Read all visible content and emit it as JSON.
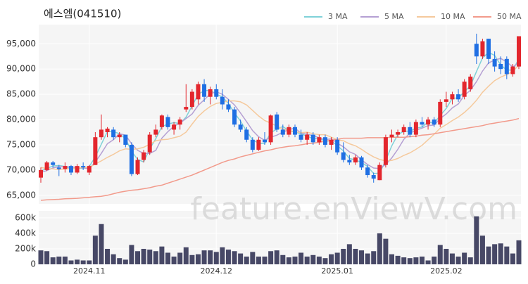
{
  "watermark": "feature.enViewV.com",
  "chart_data": [
    {
      "type": "candlestick",
      "title": "에스엠(041510)",
      "categories": [
        null,
        null,
        null,
        null,
        null,
        null,
        null,
        null,
        "2024.11",
        null,
        null,
        null,
        null,
        null,
        null,
        null,
        null,
        null,
        null,
        null,
        null,
        null,
        null,
        null,
        null,
        null,
        null,
        null,
        null,
        "2024.12",
        null,
        null,
        null,
        null,
        null,
        null,
        null,
        null,
        null,
        null,
        null,
        null,
        null,
        null,
        null,
        null,
        null,
        null,
        null,
        "2025.01",
        null,
        null,
        null,
        null,
        null,
        null,
        null,
        null,
        null,
        null,
        null,
        null,
        null,
        null,
        null,
        null,
        null,
        "2025.02",
        null,
        null,
        null,
        null,
        null,
        null,
        null,
        null,
        null,
        null,
        null,
        null
      ],
      "open": [
        68500,
        70000,
        71500,
        70500,
        70200,
        70800,
        69500,
        70800,
        69500,
        71000,
        76500,
        77500,
        78000,
        76500,
        77000,
        75000,
        69200,
        72000,
        73500,
        77000,
        78500,
        80500,
        78000,
        79000,
        82000,
        82500,
        84000,
        87000,
        84500,
        86000,
        84500,
        83000,
        82000,
        79000,
        78000,
        76000,
        74000,
        76000,
        75500,
        81000,
        78000,
        77000,
        78500,
        77000,
        76000,
        77000,
        75500,
        76500,
        75000,
        76000,
        73500,
        72000,
        71500,
        72500,
        70500,
        69000,
        68000,
        71000,
        76500,
        77000,
        77500,
        78500,
        77000,
        79500,
        79000,
        80000,
        79000,
        83500,
        84000,
        85000,
        84500,
        86000,
        95000,
        92500,
        96000,
        92000,
        91000,
        92000,
        89000,
        90500
      ],
      "high": [
        70500,
        71800,
        71800,
        71000,
        71500,
        71000,
        71200,
        71500,
        71000,
        77500,
        81000,
        78500,
        78500,
        77500,
        77000,
        75500,
        72500,
        74000,
        77500,
        79000,
        81000,
        81000,
        79500,
        80500,
        87000,
        86000,
        87500,
        88000,
        86500,
        87000,
        86000,
        84000,
        82500,
        80000,
        78500,
        76500,
        76500,
        77500,
        81000,
        81500,
        79000,
        79000,
        79000,
        78000,
        77500,
        77500,
        77000,
        77000,
        76500,
        76500,
        75500,
        73000,
        73000,
        72800,
        71000,
        69500,
        71500,
        77000,
        78000,
        78000,
        79000,
        79500,
        80000,
        80500,
        80500,
        80500,
        84000,
        85500,
        85500,
        86000,
        88000,
        89000,
        97000,
        96000,
        96000,
        93500,
        92500,
        92500,
        91000,
        96500
      ],
      "low": [
        67500,
        69800,
        70500,
        68800,
        69500,
        69000,
        69200,
        70000,
        69000,
        71000,
        76000,
        76500,
        76000,
        75500,
        74500,
        68800,
        69000,
        71500,
        73000,
        76500,
        78000,
        78000,
        77000,
        78000,
        81500,
        82000,
        83000,
        83500,
        83000,
        84000,
        82000,
        81500,
        78500,
        77500,
        75500,
        73500,
        73800,
        75000,
        75000,
        77500,
        76500,
        76500,
        76500,
        75500,
        75000,
        75000,
        75000,
        74500,
        74000,
        73000,
        71500,
        71000,
        71000,
        70000,
        68500,
        67500,
        68000,
        70500,
        75500,
        76500,
        77000,
        76500,
        76500,
        78500,
        78000,
        78500,
        78500,
        82500,
        83000,
        83500,
        84000,
        85500,
        91000,
        92000,
        91000,
        89500,
        89000,
        88000,
        88500,
        90000
      ],
      "close": [
        70000,
        71500,
        71000,
        70200,
        70800,
        69500,
        70800,
        70500,
        70800,
        76500,
        78000,
        78200,
        76500,
        77000,
        75000,
        69200,
        72000,
        73500,
        77000,
        78000,
        80800,
        78500,
        79000,
        80000,
        82500,
        85500,
        87000,
        84500,
        86000,
        84500,
        83000,
        82000,
        79000,
        78000,
        76000,
        74000,
        76000,
        75500,
        80800,
        78000,
        77000,
        78500,
        77000,
        76000,
        77000,
        75500,
        76500,
        75000,
        76000,
        73500,
        72000,
        71500,
        72500,
        70500,
        69000,
        68300,
        71000,
        76500,
        77000,
        77500,
        78500,
        77000,
        79500,
        79000,
        80000,
        79000,
        83500,
        84000,
        85000,
        84000,
        87500,
        88500,
        92500,
        95500,
        92000,
        90500,
        90000,
        89000,
        90500,
        96500
      ],
      "up_color": "#e3262d",
      "down_color": "#1f6fe3",
      "series": [
        {
          "name": "3 MA",
          "color": "#7fd1d8",
          "values": [
            69800,
            70300,
            70800,
            70900,
            70700,
            70200,
            70400,
            70300,
            70700,
            72600,
            75100,
            77600,
            77600,
            77200,
            76200,
            73700,
            72100,
            71600,
            74200,
            76200,
            78600,
            79100,
            79400,
            79200,
            80500,
            82700,
            85000,
            85700,
            85800,
            85000,
            84500,
            83200,
            81300,
            79700,
            77700,
            76000,
            75300,
            75200,
            77400,
            78100,
            78600,
            77800,
            77500,
            77200,
            76700,
            76200,
            76300,
            75700,
            75800,
            74800,
            73800,
            72300,
            72000,
            71500,
            70700,
            69300,
            69400,
            71900,
            74800,
            77000,
            77700,
            77700,
            78300,
            78500,
            79500,
            79300,
            80800,
            82200,
            84200,
            84300,
            85500,
            86700,
            89500,
            92200,
            93300,
            92700,
            90800,
            89800,
            89800,
            92000
          ]
        },
        {
          "name": "5 MA",
          "color": "#b5a0d3",
          "values": [
            69500,
            69900,
            70400,
            70700,
            70700,
            70600,
            70500,
            70400,
            70300,
            71600,
            73300,
            75200,
            76000,
            77200,
            76900,
            75200,
            73900,
            73300,
            73300,
            73900,
            76300,
            77600,
            78700,
            79300,
            80200,
            81100,
            82800,
            83900,
            85100,
            85500,
            85000,
            84000,
            82900,
            81300,
            79600,
            77800,
            76600,
            75900,
            76500,
            76900,
            77500,
            78000,
            78300,
            77300,
            77100,
            76800,
            76400,
            76000,
            76200,
            75300,
            74600,
            73600,
            73100,
            72000,
            71100,
            70400,
            70300,
            71100,
            72400,
            74100,
            76100,
            77300,
            77900,
            78300,
            78800,
            78900,
            80200,
            81100,
            82300,
            83100,
            84800,
            85800,
            87500,
            89600,
            91200,
            91800,
            92100,
            91400,
            90400,
            91300
          ]
        },
        {
          "name": "10 MA",
          "color": "#f5c99c",
          "values": [
            70500,
            70300,
            70200,
            70100,
            70200,
            70300,
            70400,
            70500,
            70500,
            71200,
            71800,
            72500,
            73100,
            73800,
            74200,
            74100,
            74200,
            74500,
            75100,
            75800,
            76000,
            76100,
            76400,
            76700,
            77500,
            79100,
            80600,
            81700,
            82600,
            83200,
            83400,
            83700,
            83700,
            83500,
            82900,
            81800,
            80700,
            79800,
            79300,
            78700,
            78100,
            77800,
            77600,
            77400,
            77500,
            77200,
            77000,
            77000,
            76500,
            76000,
            75800,
            75200,
            74800,
            74100,
            73300,
            72600,
            72100,
            71800,
            71900,
            72300,
            72900,
            73400,
            74100,
            74900,
            76000,
            77100,
            78300,
            79000,
            79800,
            80500,
            81400,
            82500,
            83800,
            85400,
            86600,
            87700,
            88400,
            88900,
            89500,
            90800
          ]
        },
        {
          "name": "50 MA",
          "color": "#f29a8b",
          "values": [
            64000,
            64100,
            64150,
            64200,
            64300,
            64350,
            64400,
            64500,
            64600,
            64700,
            64800,
            65000,
            65300,
            65600,
            65800,
            66000,
            66100,
            66300,
            66500,
            66800,
            67000,
            67400,
            67800,
            68200,
            68600,
            69000,
            69500,
            70000,
            70500,
            71000,
            71500,
            71900,
            72200,
            72600,
            72900,
            73200,
            73500,
            73800,
            74000,
            74300,
            74500,
            74700,
            74800,
            75000,
            75200,
            75300,
            75500,
            75700,
            75900,
            76100,
            76300,
            76300,
            76300,
            76300,
            76400,
            76400,
            76400,
            76400,
            76500,
            76500,
            76500,
            76600,
            76700,
            76900,
            77000,
            77200,
            77400,
            77600,
            77800,
            78000,
            78200,
            78400,
            78600,
            78800,
            79100,
            79300,
            79500,
            79700,
            79900,
            80200
          ]
        }
      ],
      "ylim": [
        63300,
        98800
      ],
      "yticks": [
        {
          "value": 65000,
          "label": "65,000"
        },
        {
          "value": 70000,
          "label": "70,000"
        },
        {
          "value": 75000,
          "label": "75,000"
        },
        {
          "value": 80000,
          "label": "80,000"
        },
        {
          "value": 85000,
          "label": "85,000"
        },
        {
          "value": 90000,
          "label": "90,000"
        },
        {
          "value": 95000,
          "label": "95,000"
        }
      ],
      "grid": true,
      "legend": "top-right"
    },
    {
      "type": "bar",
      "color": "#474866",
      "values": [
        180000,
        170000,
        90000,
        100000,
        100000,
        50000,
        60000,
        50000,
        50000,
        370000,
        520000,
        200000,
        130000,
        80000,
        60000,
        250000,
        170000,
        200000,
        190000,
        170000,
        230000,
        150000,
        100000,
        150000,
        220000,
        120000,
        130000,
        180000,
        180000,
        160000,
        220000,
        190000,
        170000,
        140000,
        100000,
        160000,
        100000,
        100000,
        170000,
        180000,
        120000,
        90000,
        100000,
        150000,
        100000,
        120000,
        100000,
        80000,
        130000,
        150000,
        200000,
        260000,
        200000,
        180000,
        140000,
        170000,
        400000,
        330000,
        130000,
        110000,
        90000,
        80000,
        90000,
        100000,
        50000,
        100000,
        250000,
        200000,
        140000,
        100000,
        150000,
        90000,
        620000,
        370000,
        230000,
        260000,
        270000,
        230000,
        140000,
        310000
      ],
      "ylim": [
        0,
        690000
      ],
      "yticks": [
        0,
        {
          "value": 200000,
          "label": "200k"
        },
        {
          "value": 400000,
          "label": "400k"
        },
        {
          "value": 600000,
          "label": "600k"
        }
      ],
      "grid": true
    }
  ]
}
